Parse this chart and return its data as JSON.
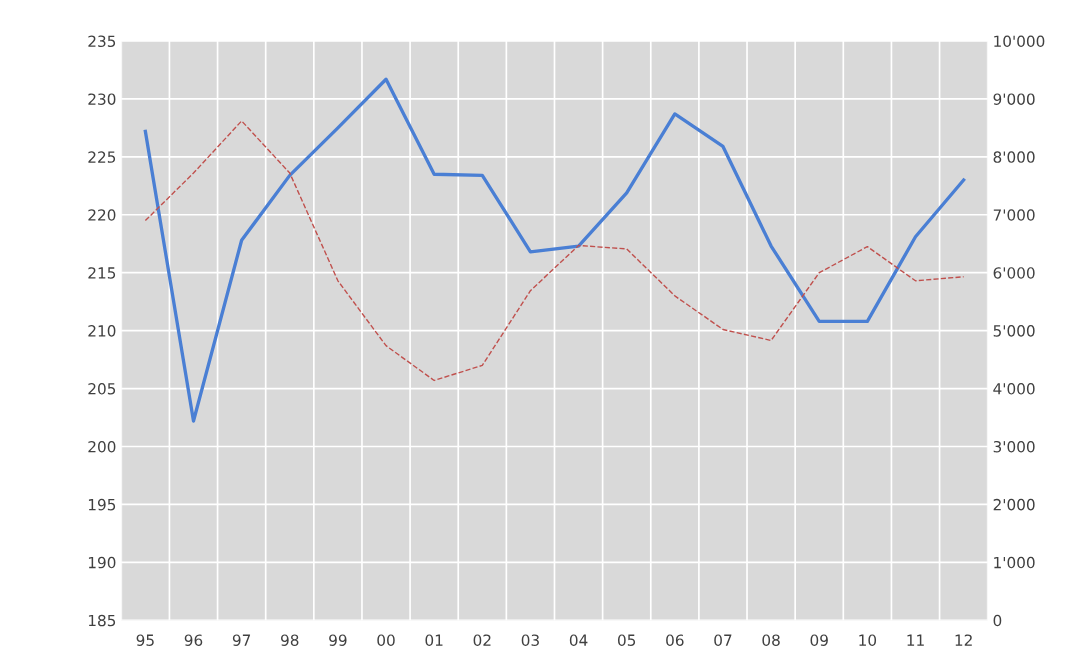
{
  "chart_data": {
    "type": "line",
    "categories": [
      "95",
      "96",
      "97",
      "98",
      "99",
      "00",
      "01",
      "02",
      "03",
      "04",
      "05",
      "06",
      "07",
      "08",
      "09",
      "10",
      "11",
      "12"
    ],
    "series": [
      {
        "color": "#4a7fd4",
        "line_style": "solid",
        "values": [
          227.2,
          202.2,
          217.8,
          223.4,
          227.5,
          231.7,
          223.5,
          223.4,
          216.8,
          217.3,
          221.9,
          228.7,
          225.9,
          217.3,
          210.8,
          210.8,
          218.1,
          223.0
        ]
      },
      {
        "color": "#c0504d",
        "line_style": "dashed",
        "axis": "y2",
        "values": [
          6900,
          7720,
          8620,
          7720,
          5860,
          4740,
          4140,
          4400,
          5690,
          6470,
          6410,
          5600,
          5020,
          4830,
          6000,
          6450,
          5860,
          5930
        ]
      }
    ],
    "ylim": [
      185,
      235
    ],
    "yticks": [
      185,
      190,
      195,
      200,
      205,
      210,
      215,
      220,
      225,
      230,
      235
    ],
    "y2lim": [
      0,
      10000
    ],
    "y2ticks": [
      0,
      {
        "value": 1000,
        "label": "1'000"
      },
      {
        "value": 2000,
        "label": "2'000"
      },
      {
        "value": 3000,
        "label": "3'000"
      },
      {
        "value": 4000,
        "label": "4'000"
      },
      {
        "value": 5000,
        "label": "5'000"
      },
      {
        "value": 6000,
        "label": "6'000"
      },
      {
        "value": 7000,
        "label": "7'000"
      },
      {
        "value": 8000,
        "label": "8'000"
      },
      {
        "value": 9000,
        "label": "9'000"
      },
      {
        "value": 10000,
        "label": "10'000"
      }
    ],
    "grid": true
  }
}
